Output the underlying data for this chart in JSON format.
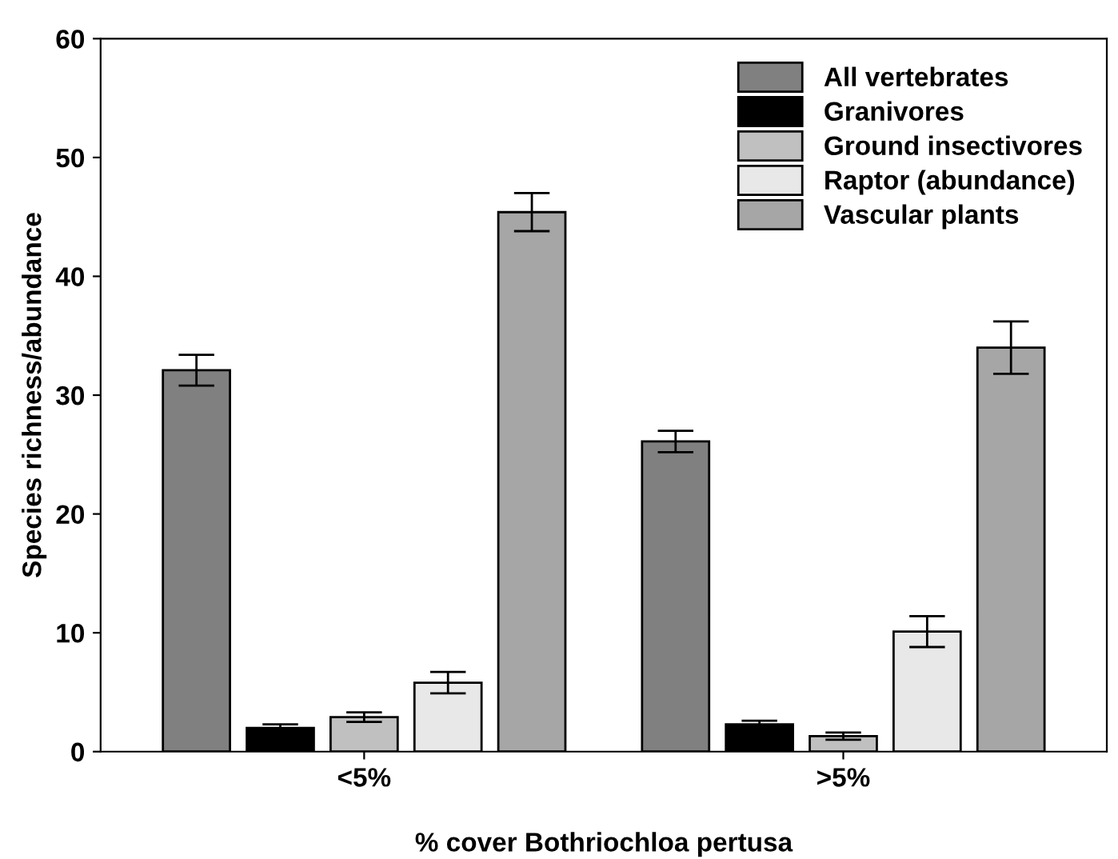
{
  "chart_data": {
    "type": "bar",
    "xlabel": "% cover Bothriochloa pertusa",
    "ylabel": "Species richness/abundance",
    "categories": [
      "<5%",
      ">5%"
    ],
    "series": [
      {
        "name": "All vertebrates",
        "color": "#808080",
        "values": [
          32.1,
          26.1
        ],
        "errors": [
          1.3,
          0.9
        ]
      },
      {
        "name": "Granivores",
        "color": "#000000",
        "values": [
          2.0,
          2.3
        ],
        "errors": [
          0.3,
          0.3
        ]
      },
      {
        "name": "Ground insectivores",
        "color": "#c0c0c0",
        "values": [
          2.9,
          1.3
        ],
        "errors": [
          0.4,
          0.3
        ]
      },
      {
        "name": "Raptor (abundance)",
        "color": "#e8e8e8",
        "values": [
          5.8,
          10.1
        ],
        "errors": [
          0.9,
          1.3
        ]
      },
      {
        "name": "Vascular plants",
        "color": "#a6a6a6",
        "values": [
          45.4,
          34.0
        ],
        "errors": [
          1.6,
          2.2
        ]
      }
    ],
    "ylim": [
      0,
      60
    ],
    "yticks": [
      0,
      10,
      20,
      30,
      40,
      50,
      60
    ],
    "grid": false,
    "legend": "top right"
  }
}
